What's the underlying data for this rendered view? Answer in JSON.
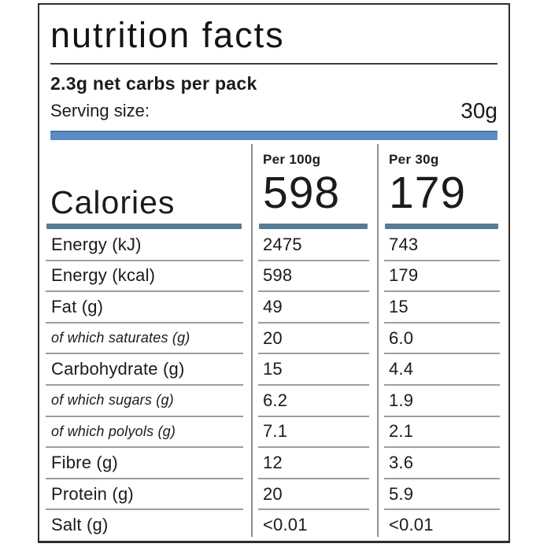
{
  "label": {
    "title": "nutrition facts",
    "net_carbs_note": "2.3g net carbs per pack",
    "serving_size_label": "Serving size:",
    "serving_size_value": "30g"
  },
  "columns": {
    "per_100g": "Per 100g",
    "per_30g": "Per 30g"
  },
  "calories": {
    "label": "Calories",
    "per_100g": "598",
    "per_30g": "179"
  },
  "rows": [
    {
      "label": "Energy (kJ)",
      "per_100g": "2475",
      "per_30g": "743",
      "style": "regular"
    },
    {
      "label": "Energy (kcal)",
      "per_100g": "598",
      "per_30g": "179",
      "style": "regular"
    },
    {
      "label": "Fat (g)",
      "per_100g": "49",
      "per_30g": "15",
      "style": "regular"
    },
    {
      "label": "of which saturates (g)",
      "per_100g": "20",
      "per_30g": "6.0",
      "style": "italic"
    },
    {
      "label": "Carbohydrate (g)",
      "per_100g": "15",
      "per_30g": "4.4",
      "style": "regular"
    },
    {
      "label": "of which sugars (g)",
      "per_100g": "6.2",
      "per_30g": "1.9",
      "style": "italic"
    },
    {
      "label": "of which polyols (g)",
      "per_100g": "7.1",
      "per_30g": "2.1",
      "style": "italic"
    },
    {
      "label": "Fibre (g)",
      "per_100g": "12",
      "per_30g": "3.6",
      "style": "regular"
    },
    {
      "label": "Protein (g)",
      "per_100g": "20",
      "per_30g": "5.9",
      "style": "regular"
    },
    {
      "label": "Salt (g)",
      "per_100g": "<0.01",
      "per_30g": "<0.01",
      "style": "regular"
    }
  ],
  "colors": {
    "accent_bar": "#5b8cc6",
    "calories_underline": "#567c95",
    "column_divider": "#909090",
    "row_separator": "#9d9d9d",
    "text": "#1b1b1b",
    "border": "#2e2e2e"
  }
}
